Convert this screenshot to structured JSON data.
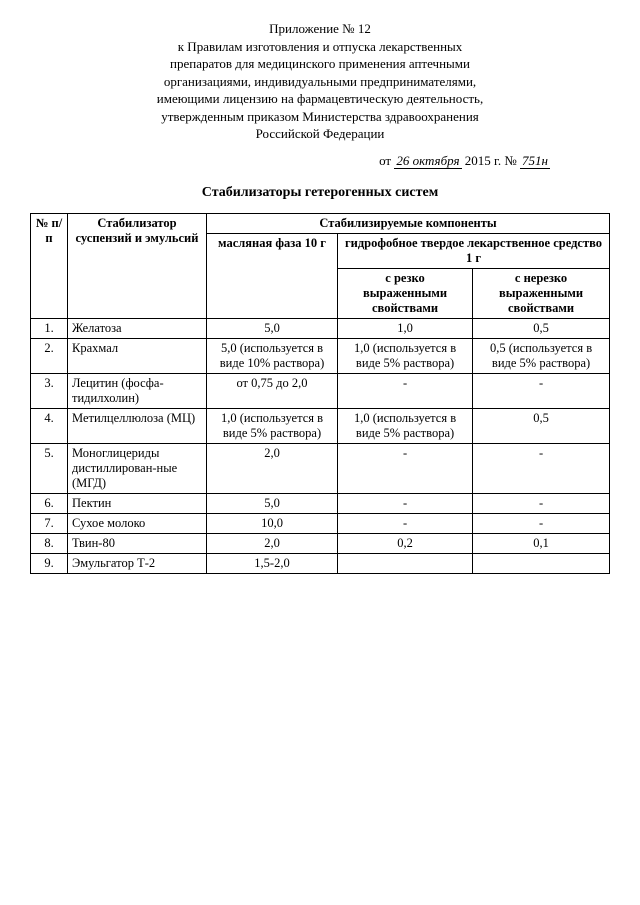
{
  "header": {
    "line1": "Приложение № 12",
    "line2": "к Правилам изготовления и отпуска лекарственных",
    "line3": "препаратов для медицинского применения аптечными",
    "line4": "организациями, индивидуальными предпринимателями,",
    "line5": "имеющими лицензию на фармацевтическую деятельность,",
    "line6": "утвержденным приказом Министерства здравоохранения",
    "line7": "Российской Федерации"
  },
  "date": {
    "prefix": "от",
    "day_month": "26 октября",
    "year": "2015 г.",
    "num_label": "№",
    "num": "751н"
  },
  "title": "Стабилизаторы гетерогенных систем",
  "table": {
    "head": {
      "num": "№ п/п",
      "stabilizer": "Стабилизатор суспензий и эмульсий",
      "components": "Стабилизируемые компоненты",
      "oil": "масляная фаза 10 г",
      "hydrophobic": "гидрофобное твердое лекарственное средство 1 г",
      "strong": "с резко выраженными свойствами",
      "weak": "с нерезко выраженными свойствами"
    },
    "rows": [
      {
        "n": "1.",
        "name": "Желатоза",
        "oil": "5,0",
        "strong": "1,0",
        "weak": "0,5"
      },
      {
        "n": "2.",
        "name": "Крахмал",
        "oil": "5,0 (используется в виде 10% раствора)",
        "strong": "1,0 (используется в виде 5% раствора)",
        "weak": "0,5 (используется в виде 5% раствора)"
      },
      {
        "n": "3.",
        "name": "Лецитин (фосфа-тидилхолин)",
        "oil": "от 0,75 до 2,0",
        "strong": "-",
        "weak": "-"
      },
      {
        "n": "4.",
        "name": "Метилцеллюлоза (МЦ)",
        "oil": "1,0 (используется в виде 5% раствора)",
        "strong": "1,0 (используется в виде 5% раствора)",
        "weak": "0,5"
      },
      {
        "n": "5.",
        "name": "Моноглицериды дистиллирован-ные (МГД)",
        "oil": "2,0",
        "strong": "-",
        "weak": "-"
      },
      {
        "n": "6.",
        "name": "Пектин",
        "oil": "5,0",
        "strong": "-",
        "weak": "-"
      },
      {
        "n": "7.",
        "name": "Сухое молоко",
        "oil": "10,0",
        "strong": "-",
        "weak": "-"
      },
      {
        "n": "8.",
        "name": "Твин-80",
        "oil": "2,0",
        "strong": "0,2",
        "weak": "0,1"
      },
      {
        "n": "9.",
        "name": "Эмульгатор Т-2",
        "oil": "1,5-2,0",
        "strong": "",
        "weak": ""
      }
    ]
  }
}
